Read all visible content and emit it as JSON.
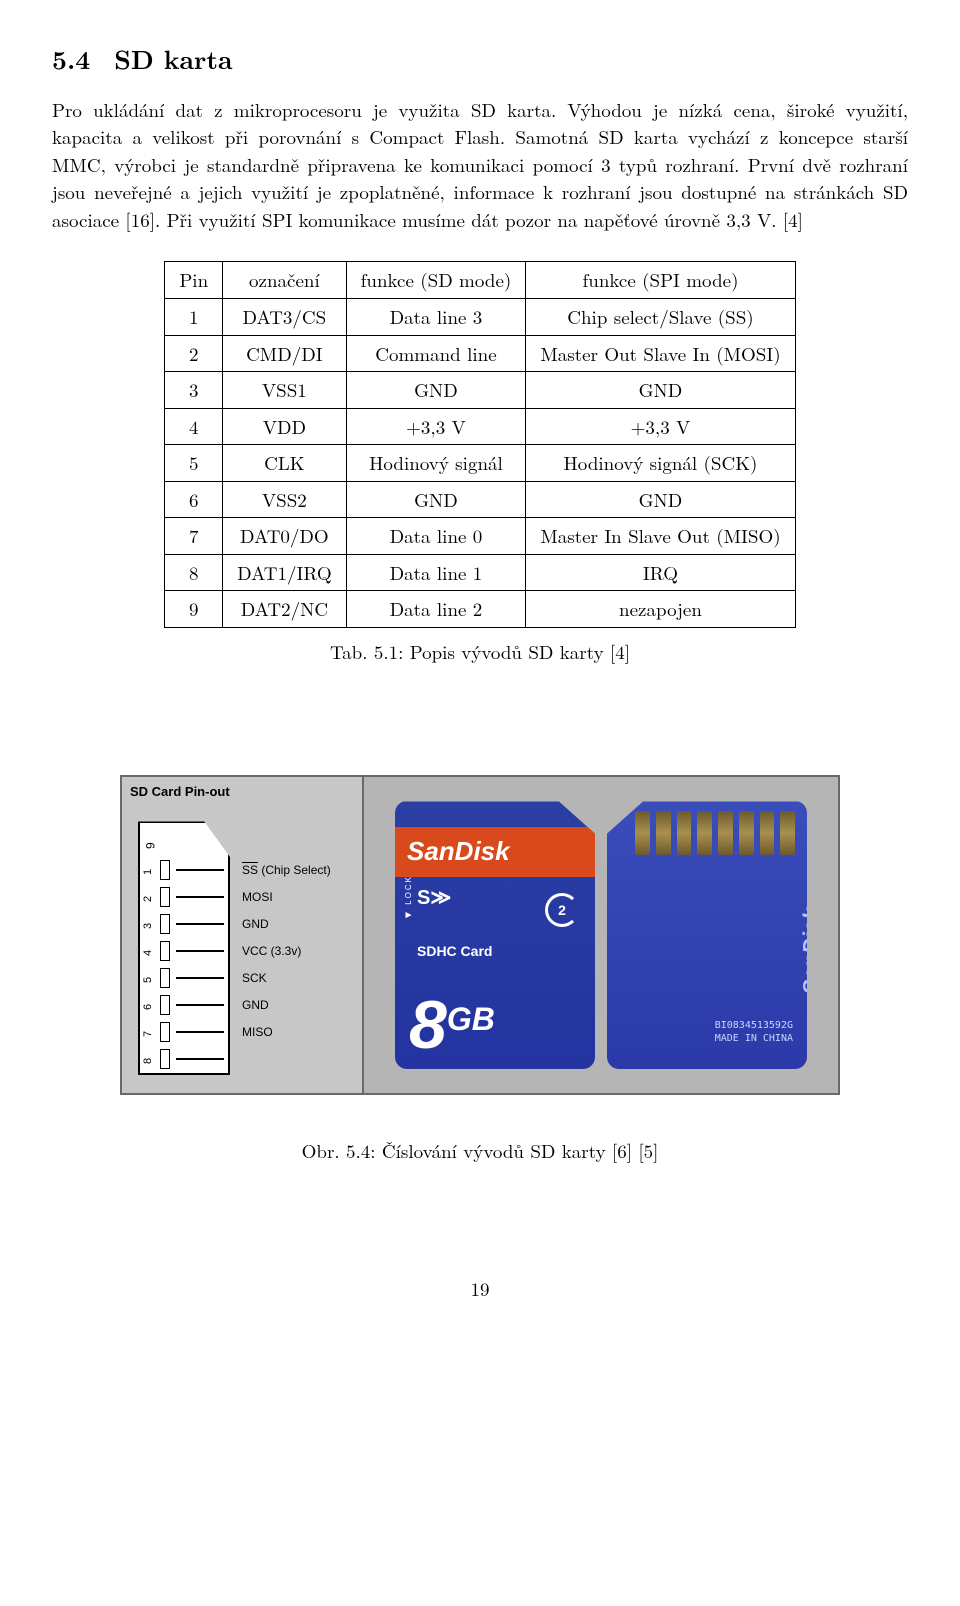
{
  "section": {
    "number": "5.4",
    "title": "SD karta"
  },
  "paragraph": "Pro ukládání dat z mikroprocesoru je využita SD karta. Výhodou je nízká cena, široké využití, kapacita a velikost při porovnání s Compact Flash. Samotná SD karta vychází z koncepce starší MMC, výrobci je standardně připravena ke komunikaci pomocí 3 typů rozhraní. První dvě rozhraní jsou neveřejné a jejich využití je zpoplatněné, informace k rozhraní jsou dostupné na stránkách SD asociace [16]. Při využití SPI komunikace musíme dát pozor na napěťové úrovně 3,3 V. [4]",
  "table": {
    "headers": [
      "Pin",
      "označení",
      "funkce (SD mode)",
      "funkce (SPI mode)"
    ],
    "rows": [
      [
        "1",
        "DAT3/CS",
        "Data line 3",
        "Chip select/Slave (SS)"
      ],
      [
        "2",
        "CMD/DI",
        "Command line",
        "Master Out Slave In (MOSI)"
      ],
      [
        "3",
        "VSS1",
        "GND",
        "GND"
      ],
      [
        "4",
        "VDD",
        "+3,3 V",
        "+3,3 V"
      ],
      [
        "5",
        "CLK",
        "Hodinový signál",
        "Hodinový signál (SCK)"
      ],
      [
        "6",
        "VSS2",
        "GND",
        "GND"
      ],
      [
        "7",
        "DAT0/DO",
        "Data line 0",
        "Master In Slave Out (MISO)"
      ],
      [
        "8",
        "DAT1/IRQ",
        "Data line 1",
        "IRQ"
      ],
      [
        "9",
        "DAT2/NC",
        "Data line 2",
        "nezapojen"
      ]
    ],
    "caption": "Tab. 5.1: Popis vývodů SD karty [4]"
  },
  "pinout": {
    "title": "SD Card Pin-out",
    "side_pin": "9",
    "pins": [
      {
        "n": "1",
        "label": "SS",
        "suffix": " (Chip Select)",
        "overline": true
      },
      {
        "n": "2",
        "label": "MOSI"
      },
      {
        "n": "3",
        "label": "GND"
      },
      {
        "n": "4",
        "label": "VCC (3.3v)"
      },
      {
        "n": "5",
        "label": "SCK"
      },
      {
        "n": "6",
        "label": "GND"
      },
      {
        "n": "7",
        "label": "MISO"
      },
      {
        "n": "8",
        "label": ""
      }
    ]
  },
  "card": {
    "brand": "SanDisk",
    "lock": "◀ LOCK",
    "sd_big": "S≫",
    "sdhc": "SDHC Card",
    "class_num": "2",
    "capacity_num": "8",
    "capacity_unit": "GB",
    "serial": "BI0834513592G",
    "made": "MADE IN CHINA"
  },
  "figure_caption": "Obr. 5.4: Číslování vývodů SD karty [6] [5]",
  "page_number": "19"
}
